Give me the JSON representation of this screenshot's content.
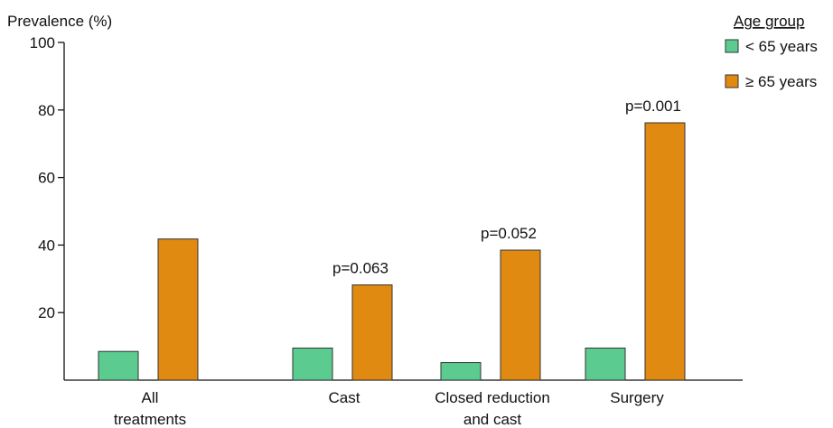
{
  "chart_data": {
    "type": "bar",
    "ylabel": "Prevalence (%)",
    "xlabel": "",
    "ylim": [
      0,
      100
    ],
    "yticks": [
      20,
      40,
      60,
      80,
      100
    ],
    "grid": false,
    "legend_placement": "top-right",
    "categories": [
      [
        "All",
        "treatments"
      ],
      [
        "Cast"
      ],
      [
        "Closed reduction",
        "and cast"
      ],
      [
        "Surgery"
      ]
    ],
    "legend": {
      "title": "Age group"
    },
    "series": [
      {
        "name": "< 65 years",
        "color": "#5ccb8f",
        "values": [
          8.5,
          9.5,
          5.2,
          9.5
        ]
      },
      {
        "name": "≥ 65 years",
        "color": "#e08a12",
        "values": [
          41.8,
          28.2,
          38.5,
          76.2
        ]
      }
    ],
    "annotations": [
      "",
      "p=0.063",
      "p=0.052",
      "p=0.001"
    ]
  }
}
